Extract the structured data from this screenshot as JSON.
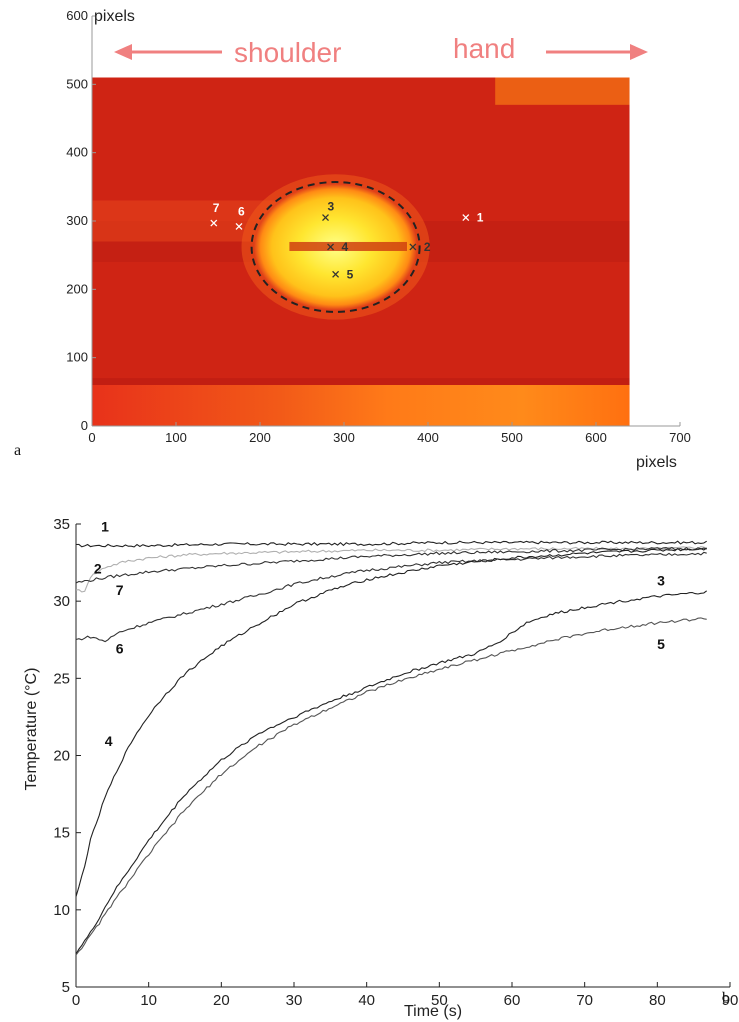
{
  "panel_a": {
    "label": "a",
    "annotations": {
      "left": "shoulder",
      "right": "hand"
    }
  },
  "panel_b": {
    "label": "b"
  },
  "chart_data": [
    {
      "type": "heatmap",
      "xlabel": "pixels",
      "ylabel": "pixels",
      "xlim": [
        0,
        700
      ],
      "ylim": [
        0,
        600
      ],
      "xticks": [
        0,
        100,
        200,
        300,
        400,
        500,
        600,
        700
      ],
      "yticks": [
        0,
        100,
        200,
        300,
        400,
        500,
        600
      ],
      "image_extent": {
        "x": [
          0,
          640
        ],
        "y": [
          0,
          510
        ]
      },
      "colormap": [
        "#c81e12",
        "#ff7a10",
        "#ffe23a",
        "#ffff80"
      ],
      "hot_spot": {
        "center": [
          290,
          262
        ],
        "radius_x": 100,
        "radius_y": 95,
        "boundary": "dashed circle"
      },
      "points": [
        {
          "label": "1",
          "x": 445,
          "y": 305
        },
        {
          "label": "2",
          "x": 382,
          "y": 262
        },
        {
          "label": "3",
          "x": 278,
          "y": 305
        },
        {
          "label": "4",
          "x": 284,
          "y": 262
        },
        {
          "label": "5",
          "x": 290,
          "y": 222
        },
        {
          "label": "6",
          "x": 175,
          "y": 292
        },
        {
          "label": "7",
          "x": 145,
          "y": 297
        }
      ]
    },
    {
      "type": "line",
      "xlabel": "Time (s)",
      "ylabel": "Temperature (°C)",
      "xlim": [
        0,
        90
      ],
      "ylim": [
        5,
        35
      ],
      "xticks": [
        0,
        10,
        20,
        30,
        40,
        50,
        60,
        70,
        80,
        90
      ],
      "yticks": [
        5,
        10,
        15,
        20,
        25,
        30,
        35
      ],
      "grid": false,
      "series": [
        {
          "name": "1",
          "color": "#222222",
          "x": [
            0,
            10,
            20,
            30,
            40,
            50,
            60,
            70,
            80,
            87
          ],
          "y": [
            33.6,
            33.6,
            33.7,
            33.7,
            33.7,
            33.8,
            33.8,
            33.8,
            33.8,
            33.8
          ]
        },
        {
          "name": "2",
          "color": "#b0b0b0",
          "x": [
            0,
            1,
            2,
            4,
            7,
            10,
            15,
            20,
            30,
            40,
            50,
            60,
            70,
            80,
            87
          ],
          "y": [
            30.8,
            30.5,
            31.6,
            32.2,
            32.6,
            32.8,
            33.0,
            33.1,
            33.2,
            33.3,
            33.3,
            33.4,
            33.4,
            33.4,
            33.5
          ]
        },
        {
          "name": "7",
          "color": "#333333",
          "x": [
            0,
            5,
            10,
            20,
            30,
            40,
            50,
            60,
            70,
            80,
            87
          ],
          "y": [
            31.2,
            31.6,
            31.9,
            32.3,
            32.6,
            32.9,
            33.1,
            33.2,
            33.3,
            33.4,
            33.4
          ]
        },
        {
          "name": "6",
          "color": "#333333",
          "x": [
            0,
            2,
            4,
            6,
            10,
            15,
            20,
            25,
            30,
            35,
            40,
            50,
            60,
            70,
            80,
            87
          ],
          "y": [
            27.5,
            27.7,
            27.4,
            28.0,
            28.6,
            29.2,
            29.8,
            30.4,
            31.1,
            31.6,
            32.0,
            32.5,
            32.7,
            32.9,
            33.0,
            33.1
          ]
        },
        {
          "name": "4",
          "color": "#222222",
          "x": [
            0,
            1,
            2,
            4,
            6,
            8,
            10,
            12,
            15,
            18,
            20,
            25,
            30,
            35,
            40,
            50,
            60,
            70,
            80,
            87
          ],
          "y": [
            10.8,
            12.5,
            14.5,
            17.3,
            19.4,
            21.2,
            22.6,
            23.8,
            25.3,
            26.4,
            27.1,
            28.5,
            29.8,
            30.7,
            31.4,
            32.3,
            32.8,
            33.1,
            33.3,
            33.4
          ]
        },
        {
          "name": "3",
          "color": "#222222",
          "x": [
            0,
            2,
            5,
            10,
            15,
            20,
            25,
            30,
            35,
            40,
            45,
            50,
            55,
            58,
            62,
            65,
            70,
            75,
            80,
            87
          ],
          "y": [
            7.2,
            8.5,
            11.0,
            14.5,
            17.5,
            19.7,
            21.4,
            22.5,
            23.5,
            24.4,
            25.3,
            26.0,
            26.6,
            27.3,
            28.6,
            29.1,
            29.6,
            30.0,
            30.3,
            30.6
          ]
        },
        {
          "name": "5",
          "color": "#555555",
          "x": [
            0,
            2,
            5,
            10,
            15,
            20,
            25,
            30,
            35,
            40,
            45,
            50,
            55,
            60,
            65,
            70,
            75,
            80,
            87
          ],
          "y": [
            7.1,
            8.3,
            10.4,
            13.6,
            16.5,
            18.8,
            20.6,
            22.0,
            23.1,
            24.1,
            24.9,
            25.6,
            26.2,
            26.8,
            27.4,
            27.9,
            28.3,
            28.6,
            28.9
          ]
        }
      ],
      "curve_labels": [
        {
          "text": "1",
          "x": 4,
          "y": 34.5
        },
        {
          "text": "2",
          "x": 3,
          "y": 31.8
        },
        {
          "text": "7",
          "x": 6,
          "y": 30.4
        },
        {
          "text": "6",
          "x": 6,
          "y": 26.6
        },
        {
          "text": "4",
          "x": 4.5,
          "y": 20.6
        },
        {
          "text": "3",
          "x": 80.5,
          "y": 31.0
        },
        {
          "text": "5",
          "x": 80.5,
          "y": 26.9
        }
      ]
    }
  ]
}
